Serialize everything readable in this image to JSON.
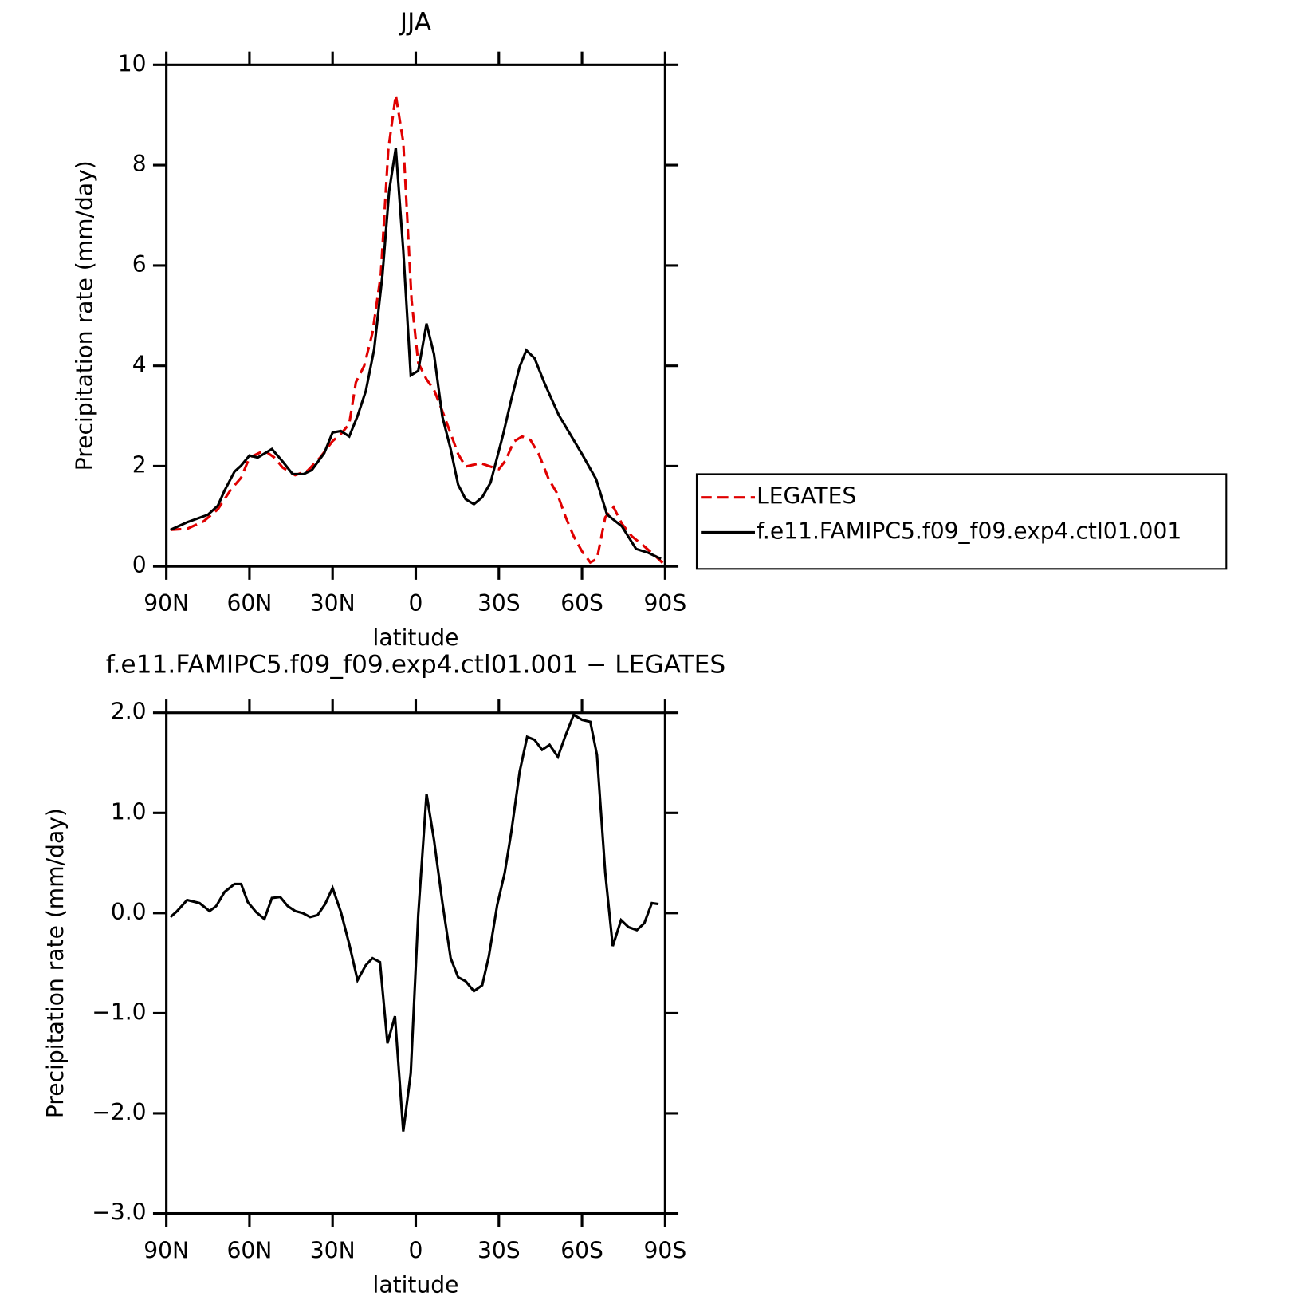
{
  "chart_data": [
    {
      "type": "line",
      "title": "JJA",
      "x_label": "latitude",
      "y_label": "Precipitation rate (mm/day)",
      "xlim": [
        90,
        -90
      ],
      "xticks": [
        {
          "value": 90,
          "label": "90N"
        },
        {
          "value": 60,
          "label": "60N"
        },
        {
          "value": 30,
          "label": "30N"
        },
        0,
        {
          "value": -30,
          "label": "30S"
        },
        {
          "value": -60,
          "label": "60S"
        },
        {
          "value": -90,
          "label": "90S"
        }
      ],
      "ylim": [
        0,
        10
      ],
      "yticks": [
        0,
        2,
        4,
        6,
        8,
        10
      ],
      "legend": "right",
      "series": [
        {
          "name": "LEGATES",
          "color": "#e00000",
          "dash": "dashed",
          "x": [
            88.5,
            82.5,
            76.5,
            71.4,
            66.6,
            63,
            60,
            54.6,
            51,
            48,
            43.5,
            39,
            34.5,
            30,
            27,
            24,
            21.6,
            18.6,
            15.6,
            12.6,
            9.9,
            7.2,
            4.5,
            1.5,
            -0.9,
            -3.9,
            -6.6,
            -9.6,
            -12.6,
            -15.3,
            -18,
            -23.4,
            -27,
            -30,
            -32.4,
            -35.4,
            -38.4,
            -41.4,
            -44.4,
            -48,
            -51,
            -54,
            -57,
            -60,
            -63,
            -65.4,
            -68.4,
            -71.4,
            -74.4,
            -78,
            -82.5,
            -87,
            -89.1
          ],
          "values": [
            0.73,
            0.75,
            0.9,
            1.14,
            1.54,
            1.77,
            2.17,
            2.31,
            2.17,
            1.97,
            1.82,
            1.91,
            2.17,
            2.5,
            2.64,
            2.84,
            3.67,
            4.0,
            4.66,
            5.82,
            8.31,
            9.4,
            8.46,
            5.31,
            4.06,
            3.73,
            3.52,
            3.1,
            2.65,
            2.24,
            1.99,
            2.06,
            1.99,
            1.94,
            2.11,
            2.49,
            2.59,
            2.52,
            2.24,
            1.74,
            1.46,
            1.0,
            0.6,
            0.3,
            0.08,
            0.15,
            0.98,
            1.18,
            0.85,
            0.6,
            0.4,
            0.18,
            0.07
          ]
        },
        {
          "name": "f.e11.FAMIPC5.f09_f09.exp4.ctl01.001",
          "color": "#000000",
          "dash": "solid",
          "x": [
            88.5,
            82.5,
            75,
            71.4,
            69,
            65.4,
            63,
            60,
            57,
            51.9,
            48,
            44.4,
            40.5,
            37.5,
            33,
            30,
            27,
            24,
            21,
            18,
            15,
            12,
            9.6,
            7.2,
            4.5,
            1.8,
            -0.9,
            -3.9,
            -6.6,
            -9.6,
            -12.6,
            -15.3,
            -18,
            -21,
            -24,
            -27,
            -31.5,
            -34.5,
            -37.5,
            -39.9,
            -42.9,
            -46.5,
            -51.6,
            -60,
            -65.1,
            -69,
            -71.4,
            -74.4,
            -79.5,
            -84,
            -88.5
          ],
          "values": [
            0.73,
            0.88,
            1.03,
            1.21,
            1.51,
            1.89,
            2.01,
            2.21,
            2.17,
            2.34,
            2.09,
            1.84,
            1.84,
            1.92,
            2.26,
            2.67,
            2.7,
            2.59,
            3.0,
            3.5,
            4.33,
            5.82,
            7.48,
            8.34,
            6.3,
            3.81,
            3.9,
            4.84,
            4.23,
            2.99,
            2.34,
            1.63,
            1.34,
            1.24,
            1.38,
            1.67,
            2.62,
            3.33,
            3.98,
            4.31,
            4.15,
            3.65,
            3.02,
            2.24,
            1.74,
            1.04,
            0.93,
            0.8,
            0.35,
            0.27,
            0.15
          ]
        }
      ]
    },
    {
      "type": "line",
      "title": "f.e11.FAMIPC5.f09_f09.exp4.ctl01.001 − LEGATES",
      "x_label": "latitude",
      "y_label": "Precipitation rate (mm/day)",
      "xlim": [
        90,
        -90
      ],
      "xticks": [
        {
          "value": 90,
          "label": "90N"
        },
        {
          "value": 60,
          "label": "60N"
        },
        {
          "value": 30,
          "label": "30N"
        },
        0,
        {
          "value": -30,
          "label": "30S"
        },
        {
          "value": -60,
          "label": "60S"
        },
        {
          "value": -90,
          "label": "90S"
        }
      ],
      "ylim": [
        -3,
        2
      ],
      "yticks": [
        {
          "value": -3,
          "label": "−3.0"
        },
        {
          "value": -2,
          "label": "−2.0"
        },
        {
          "value": -1,
          "label": "−1.0"
        },
        {
          "value": 0,
          "label": "0.0"
        },
        {
          "value": 1,
          "label": "1.0"
        },
        {
          "value": 2,
          "label": "2.0"
        }
      ],
      "series": [
        {
          "color": "#000000",
          "dash": "solid",
          "x": [
            88.5,
            86.1,
            82.5,
            78,
            74.4,
            72,
            69,
            65.4,
            63,
            60.6,
            57.6,
            54.6,
            51.9,
            48.9,
            46.2,
            43.5,
            40.8,
            38.1,
            35.4,
            32.7,
            30,
            27,
            24,
            21,
            18,
            15.6,
            12.9,
            10.2,
            7.5,
            4.5,
            1.8,
            -0.9,
            -3.9,
            -6.6,
            -9.6,
            -12.6,
            -15.3,
            -18,
            -21,
            -24,
            -26.4,
            -29.4,
            -32.1,
            -34.5,
            -37.5,
            -40.2,
            -42.9,
            -45.6,
            -48.3,
            -51.3,
            -54,
            -57,
            -60,
            -63,
            -65.4,
            -68.4,
            -71.1,
            -74.1,
            -76.8,
            -79.8,
            -82.5,
            -85.2,
            -87.6
          ],
          "values": [
            -0.04,
            0.02,
            0.13,
            0.1,
            0.02,
            0.07,
            0.21,
            0.29,
            0.29,
            0.11,
            0.01,
            -0.06,
            0.15,
            0.16,
            0.07,
            0.02,
            0.0,
            -0.04,
            -0.02,
            0.09,
            0.25,
            0.01,
            -0.31,
            -0.67,
            -0.52,
            -0.45,
            -0.49,
            -1.3,
            -1.03,
            -2.18,
            -1.6,
            -0.02,
            1.19,
            0.73,
            0.11,
            -0.45,
            -0.64,
            -0.68,
            -0.78,
            -0.72,
            -0.43,
            0.08,
            0.4,
            0.81,
            1.41,
            1.76,
            1.73,
            1.63,
            1.68,
            1.56,
            1.77,
            1.98,
            1.93,
            1.91,
            1.58,
            0.4,
            -0.33,
            -0.07,
            -0.14,
            -0.17,
            -0.1,
            0.1,
            0.09
          ]
        }
      ]
    }
  ]
}
